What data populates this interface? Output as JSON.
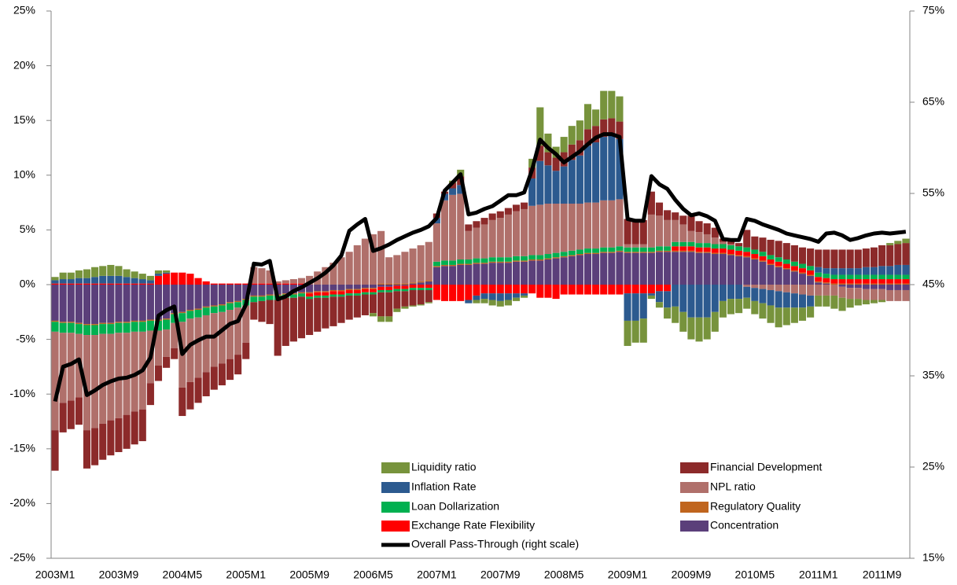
{
  "chart_data": {
    "type": "bar",
    "categories": [
      "2003M1",
      null,
      null,
      null,
      null,
      null,
      null,
      null,
      "2003M9",
      null,
      null,
      null,
      null,
      null,
      null,
      null,
      "2004M5",
      null,
      null,
      null,
      null,
      null,
      null,
      null,
      "2005M1",
      null,
      null,
      null,
      null,
      null,
      null,
      null,
      "2005M9",
      null,
      null,
      null,
      null,
      null,
      null,
      null,
      "2006M5",
      null,
      null,
      null,
      null,
      null,
      null,
      null,
      "2007M1",
      null,
      null,
      null,
      null,
      null,
      null,
      null,
      "2007M9",
      null,
      null,
      null,
      null,
      null,
      null,
      null,
      "2008M5",
      null,
      null,
      null,
      null,
      null,
      null,
      null,
      "2009M1",
      null,
      null,
      null,
      null,
      null,
      null,
      null,
      "2009M9",
      null,
      null,
      null,
      null,
      null,
      null,
      null,
      "2010M5",
      null,
      null,
      null,
      null,
      null,
      null,
      null,
      "2011M1",
      null,
      null,
      null,
      null,
      null,
      null,
      null,
      "2011M9",
      null,
      null,
      null
    ],
    "ylim": [
      -25,
      25
    ],
    "yticks": [
      {
        "value": -25,
        "label": "-25%"
      },
      {
        "value": -20,
        "label": "-20%"
      },
      {
        "value": -15,
        "label": "-15%"
      },
      {
        "value": -10,
        "label": "-10%"
      },
      {
        "value": -5,
        "label": "-5%"
      },
      {
        "value": 0,
        "label": "0%"
      },
      {
        "value": 5,
        "label": "5%"
      },
      {
        "value": 10,
        "label": "10%"
      },
      {
        "value": 15,
        "label": "15%"
      },
      {
        "value": 20,
        "label": "20%"
      },
      {
        "value": 25,
        "label": "25%"
      }
    ],
    "y2lim": [
      15,
      75
    ],
    "y2ticks": [
      {
        "value": 15,
        "label": "15%"
      },
      {
        "value": 25,
        "label": "25%"
      },
      {
        "value": 35,
        "label": "35%"
      },
      {
        "value": 45,
        "label": "45%"
      },
      {
        "value": 55,
        "label": "55%"
      },
      {
        "value": 65,
        "label": "65%"
      },
      {
        "value": 75,
        "label": "75%"
      }
    ],
    "series": [
      {
        "name": "Concentration",
        "color": "#5b3f7a",
        "values": [
          -3.3,
          -3.4,
          -3.4,
          -3.5,
          -3.6,
          -3.6,
          -3.5,
          -3.5,
          -3.4,
          -3.4,
          -3.3,
          -3.3,
          -3.2,
          -3.2,
          -3.1,
          -2.6,
          -2.5,
          -2.3,
          -2.2,
          -2.0,
          -1.9,
          -1.8,
          -1.6,
          -1.5,
          -1.3,
          -1.0,
          -1.0,
          -0.9,
          -0.9,
          -0.8,
          -0.8,
          -0.7,
          -0.7,
          -0.6,
          -0.6,
          -0.5,
          -0.5,
          -0.4,
          -0.4,
          -0.3,
          -0.3,
          -0.2,
          -0.2,
          -0.1,
          -0.1,
          0.1,
          0.2,
          0.3,
          1.6,
          1.7,
          1.7,
          1.8,
          1.8,
          1.9,
          1.9,
          2.0,
          2.0,
          2.0,
          2.1,
          2.1,
          2.2,
          2.2,
          2.3,
          2.4,
          2.5,
          2.6,
          2.7,
          2.8,
          2.8,
          2.9,
          2.9,
          3.0,
          2.9,
          2.9,
          2.9,
          2.9,
          3.0,
          3.0,
          3.0,
          3.0,
          3.0,
          2.9,
          2.9,
          2.8,
          2.8,
          2.7,
          2.6,
          2.5,
          2.3,
          2.1,
          1.8,
          1.6,
          1.4,
          1.2,
          1.0,
          0.8,
          0.2,
          0.1,
          0.0,
          -0.2,
          -0.3,
          -0.3,
          -0.4,
          -0.4,
          -0.4,
          -0.5,
          -0.5,
          -0.5
        ]
      },
      {
        "name": "Regulatory Quality",
        "color": "#c0651e",
        "values": [
          -0.1,
          -0.1,
          -0.1,
          -0.1,
          -0.1,
          -0.1,
          -0.1,
          -0.1,
          -0.1,
          -0.1,
          -0.1,
          -0.1,
          -0.1,
          -0.1,
          -0.1,
          -0.1,
          -0.1,
          -0.1,
          -0.1,
          -0.1,
          -0.1,
          -0.1,
          -0.1,
          -0.1,
          -0.1,
          -0.1,
          -0.1,
          -0.1,
          -0.1,
          -0.1,
          -0.1,
          -0.1,
          -0.1,
          -0.1,
          -0.1,
          -0.1,
          -0.1,
          -0.1,
          -0.1,
          -0.1,
          -0.1,
          0.1,
          0.1,
          0.1,
          0.1,
          0.1,
          0.1,
          0.1,
          0.1,
          0.1,
          0.1,
          0.1,
          0.1,
          0.1,
          0.1,
          0.1,
          0.1,
          0.1,
          0.1,
          0.1,
          0.1,
          0.1,
          0.1,
          0.1,
          0.1,
          0.1,
          0.1,
          0.1,
          0.1,
          0.1,
          0.1,
          0.1,
          0.1,
          0.1,
          0.1,
          0.1,
          0.1,
          0.1,
          0.1,
          0.1,
          0.1,
          0.1,
          0.1,
          0.1,
          0.1,
          0.1,
          0.1,
          0.1,
          0.1,
          0.1,
          0.1,
          0.1,
          0.1,
          0.1,
          0.1,
          0.1,
          0.1,
          0.1,
          0.1,
          0.1,
          0.1,
          0.1,
          0.1,
          0.1,
          0.1,
          0.1,
          0.1,
          0.1
        ]
      },
      {
        "name": "Exchange Rate  Flexibility",
        "color": "#ff0000",
        "values": [
          0.1,
          0.1,
          0.1,
          0.1,
          0.1,
          0.1,
          0.1,
          0.1,
          0.1,
          0.1,
          0.1,
          0.1,
          0.1,
          0.8,
          1.0,
          1.1,
          1.1,
          1.0,
          0.6,
          0.3,
          0.1,
          0.1,
          0.1,
          0.1,
          0.1,
          0.1,
          0.1,
          0.1,
          0.1,
          0.1,
          0.1,
          0.1,
          -0.3,
          -0.3,
          -0.3,
          -0.3,
          -0.3,
          -0.3,
          -0.3,
          -0.3,
          -0.3,
          -0.3,
          -0.3,
          -0.3,
          -0.3,
          -0.3,
          -0.3,
          -0.3,
          -1.4,
          -1.5,
          -1.5,
          -1.5,
          -1.4,
          -1.0,
          -0.8,
          -0.8,
          -0.8,
          -0.8,
          -0.8,
          -0.8,
          -0.8,
          -1.2,
          -1.2,
          -1.3,
          -0.9,
          -0.9,
          -0.9,
          -0.9,
          -0.9,
          -0.9,
          -0.9,
          -0.9,
          -0.8,
          -0.8,
          -0.8,
          -0.8,
          -0.6,
          -0.6,
          0.4,
          0.4,
          0.4,
          0.4,
          0.4,
          0.4,
          0.4,
          0.4,
          0.4,
          0.4,
          0.4,
          0.4,
          0.4,
          0.4,
          0.4,
          0.4,
          0.4,
          0.4,
          0.4,
          0.4,
          0.4,
          0.4,
          0.4,
          0.4,
          0.4,
          0.4,
          0.4,
          0.4,
          0.4,
          0.4
        ]
      },
      {
        "name": "Loan Dollarization",
        "color": "#00b050",
        "values": [
          -0.9,
          -0.9,
          -0.9,
          -0.9,
          -0.9,
          -0.9,
          -0.9,
          -0.9,
          -0.9,
          -0.9,
          -0.9,
          -0.9,
          -0.9,
          -0.9,
          -0.9,
          -0.8,
          -0.8,
          -0.7,
          -0.7,
          -0.7,
          -0.6,
          -0.6,
          -0.6,
          -0.5,
          -0.5,
          -0.5,
          -0.4,
          -0.4,
          -0.4,
          -0.3,
          -0.3,
          -0.3,
          -0.2,
          -0.2,
          -0.2,
          -0.2,
          -0.2,
          -0.2,
          -0.2,
          -0.2,
          -0.2,
          -0.2,
          -0.2,
          -0.2,
          -0.2,
          -0.2,
          -0.2,
          -0.2,
          0.4,
          0.4,
          0.4,
          0.4,
          0.4,
          0.4,
          0.4,
          0.4,
          0.4,
          0.4,
          0.4,
          0.4,
          0.4,
          0.4,
          0.4,
          0.4,
          0.4,
          0.4,
          0.4,
          0.4,
          0.4,
          0.4,
          0.4,
          0.4,
          0.4,
          0.4,
          0.4,
          0.4,
          0.4,
          0.4,
          0.4,
          0.4,
          0.4,
          0.4,
          0.4,
          0.4,
          0.4,
          0.4,
          0.4,
          0.4,
          0.4,
          0.4,
          0.4,
          0.4,
          0.4,
          0.4,
          0.4,
          0.4,
          0.4,
          0.4,
          0.4,
          0.4,
          0.4,
          0.4,
          0.4,
          0.4,
          0.4,
          0.4,
          0.4,
          0.4
        ]
      },
      {
        "name": "NPL ratio",
        "color": "#b0706b",
        "values": [
          -9.0,
          -6.4,
          -6.2,
          -5.8,
          -8.7,
          -8.5,
          -8.2,
          -7.9,
          -7.8,
          -7.5,
          -7.3,
          -7.1,
          -4.8,
          -3.2,
          -2.5,
          -2.3,
          -6.0,
          -5.8,
          -5.5,
          -5.2,
          -4.9,
          -4.7,
          -4.5,
          -4.3,
          -3.4,
          1.5,
          1.4,
          1.2,
          0.2,
          0.3,
          0.4,
          0.5,
          0.8,
          1.2,
          1.6,
          2.0,
          2.5,
          3.0,
          3.6,
          4.2,
          4.6,
          4.8,
          2.4,
          2.6,
          2.9,
          3.1,
          3.3,
          3.5,
          3.5,
          5.5,
          6.0,
          6.0,
          2.6,
          2.8,
          3.1,
          3.4,
          3.6,
          3.9,
          4.1,
          4.3,
          4.5,
          4.6,
          4.6,
          4.5,
          4.4,
          4.3,
          4.2,
          4.2,
          4.2,
          4.3,
          4.3,
          4.3,
          0.3,
          0.3,
          0.3,
          3.0,
          2.8,
          2.4,
          2.0,
          1.6,
          1.0,
          1.0,
          0.8,
          0.6,
          0.2,
          0.1,
          0.0,
          -0.2,
          -0.3,
          -0.4,
          -0.5,
          -0.6,
          -0.7,
          -0.8,
          -0.9,
          -1.0,
          -1.0,
          -1.0,
          -1.0,
          -1.0,
          -1.0,
          -1.0,
          -1.0,
          -1.0,
          -1.0,
          -1.0,
          -1.0,
          -1.0
        ]
      },
      {
        "name": "Inflation Rate",
        "color": "#2c5a8f",
        "values": [
          0.3,
          0.4,
          0.4,
          0.5,
          0.5,
          0.6,
          0.7,
          0.7,
          0.7,
          0.6,
          0.5,
          0.4,
          0.3,
          0.2,
          0.1,
          0,
          0,
          0,
          0,
          0,
          0,
          0,
          0,
          0,
          0,
          0,
          0,
          0,
          0,
          0,
          0,
          0,
          0,
          0,
          0,
          0,
          0,
          0,
          0,
          0,
          0,
          0,
          0,
          0,
          0,
          0,
          0,
          0,
          0.5,
          0.6,
          0.6,
          0.8,
          -0.3,
          -0.4,
          -0.5,
          -0.6,
          -0.7,
          -0.6,
          -0.4,
          -0.2,
          2.5,
          4.0,
          3.5,
          3.0,
          3.4,
          4.0,
          4.4,
          5.2,
          5.5,
          5.8,
          5.9,
          5.5,
          -2.5,
          -2.5,
          -2.3,
          -0.2,
          -1.0,
          -1.5,
          -2.0,
          -2.5,
          -3.0,
          -3.0,
          -3.0,
          -2.5,
          -1.5,
          -1.3,
          -1.3,
          -1.0,
          -1.2,
          -1.3,
          -1.4,
          -1.5,
          -1.4,
          -1.3,
          -1.2,
          -1.0,
          0.5,
          0.5,
          0.6,
          0.6,
          0.6,
          0.6,
          0.7,
          0.7,
          0.8,
          0.8,
          0.9,
          0.9
        ]
      },
      {
        "name": "Financial Development",
        "color": "#8c2a2a",
        "values": [
          -3.7,
          -2.7,
          -2.6,
          -2.5,
          -3.5,
          -3.4,
          -3.3,
          -3.2,
          -3.1,
          -3.1,
          -3.0,
          -2.9,
          -2.0,
          -1.4,
          -1.0,
          -1.0,
          -2.6,
          -2.5,
          -2.3,
          -2.2,
          -2.1,
          -2.0,
          -1.9,
          -1.8,
          -1.5,
          -1.6,
          -1.9,
          -2.2,
          -5.1,
          -4.4,
          -4.0,
          -3.8,
          -3.3,
          -3.1,
          -2.8,
          -2.7,
          -2.4,
          -2.2,
          -2.0,
          -1.9,
          -1.7,
          -2.2,
          -2.2,
          -1.6,
          -1.4,
          -1.4,
          -1.3,
          -1.1,
          0.4,
          0.2,
          0.5,
          0.8,
          0.6,
          0.6,
          0.6,
          0.6,
          0.6,
          0.6,
          0.6,
          0.6,
          1.0,
          1.4,
          1.2,
          1.2,
          1.3,
          1.4,
          1.4,
          1.5,
          1.5,
          1.6,
          1.6,
          1.6,
          2.3,
          2.2,
          2.2,
          2.1,
          1.2,
          0.9,
          0.7,
          0.8,
          1.4,
          1.0,
          1.0,
          0.9,
          0.3,
          0.3,
          0.3,
          1.6,
          1.2,
          1.3,
          1.4,
          1.5,
          1.5,
          1.5,
          1.5,
          1.6,
          1.6,
          1.7,
          1.7,
          1.7,
          1.7,
          1.7,
          1.7,
          1.8,
          1.9,
          1.9,
          1.9,
          2.0
        ]
      },
      {
        "name": "Liquidity ratio",
        "color": "#77933c",
        "values": [
          0.3,
          0.6,
          0.6,
          0.7,
          0.8,
          0.9,
          0.9,
          1.0,
          0.9,
          0.7,
          0.6,
          0.5,
          0.4,
          0.3,
          0.2,
          0,
          0,
          0,
          0,
          0,
          0,
          0,
          0,
          0,
          0,
          0,
          0,
          0,
          0,
          0,
          0,
          0,
          0,
          0,
          0,
          0,
          0,
          0,
          0,
          0,
          -0.3,
          -0.5,
          -0.5,
          -0.3,
          -0.2,
          -0.1,
          -0.1,
          -0.1,
          0,
          0,
          0.2,
          0.6,
          0,
          -0.3,
          -0.4,
          -0.5,
          -0.5,
          -0.5,
          -0.3,
          -0.2,
          0.8,
          3.5,
          1.7,
          1.0,
          1.4,
          1.7,
          1.8,
          2.3,
          1.5,
          2.6,
          2.5,
          2.3,
          -2.3,
          -2.0,
          -2.2,
          -0.3,
          -0.5,
          -1.0,
          -1.5,
          -1.8,
          -2.0,
          -2.2,
          -2.0,
          -1.8,
          -1.5,
          -1.4,
          -1.3,
          -1.0,
          -1.2,
          -1.4,
          -1.6,
          -1.8,
          -1.6,
          -1.4,
          -1.2,
          -1.0,
          -1.0,
          -1.0,
          -1.2,
          -1.2,
          -0.8,
          -0.6,
          -0.4,
          -0.3,
          -0.2,
          0.2,
          0.3,
          0.4
        ]
      },
      {
        "name": "Overall Pass-Through  (right scale)",
        "type": "line",
        "axis": "y2",
        "color": "#000000",
        "values": [
          32.2,
          36.0,
          36.3,
          36.8,
          32.9,
          33.4,
          34.0,
          34.4,
          34.7,
          34.8,
          35.1,
          35.6,
          37.0,
          41.6,
          42.2,
          42.6,
          37.4,
          38.4,
          38.9,
          39.3,
          39.3,
          40.0,
          40.7,
          41.0,
          42.8,
          47.3,
          47.2,
          47.6,
          43.4,
          43.7,
          44.3,
          44.7,
          45.2,
          45.7,
          46.3,
          47.1,
          48.2,
          50.9,
          51.6,
          52.2,
          48.7,
          49.0,
          49.4,
          49.9,
          50.3,
          50.7,
          51.0,
          51.4,
          52.3,
          55.3,
          56.2,
          57.1,
          52.7,
          52.9,
          53.3,
          53.6,
          54.2,
          54.8,
          54.8,
          55.1,
          57.6,
          60.9,
          60.0,
          59.3,
          58.4,
          59.0,
          59.6,
          60.4,
          61.1,
          61.5,
          61.5,
          61.2,
          52.2,
          52.0,
          52.0,
          56.9,
          56.0,
          55.5,
          54.3,
          53.3,
          52.6,
          52.8,
          52.5,
          52.0,
          50.0,
          49.9,
          49.9,
          52.2,
          52.0,
          51.6,
          51.3,
          51.0,
          50.6,
          50.4,
          50.2,
          50.0,
          49.7,
          50.6,
          50.7,
          50.4,
          49.9,
          50.1,
          50.4,
          50.6,
          50.7,
          50.6,
          50.7,
          50.8
        ]
      }
    ]
  }
}
